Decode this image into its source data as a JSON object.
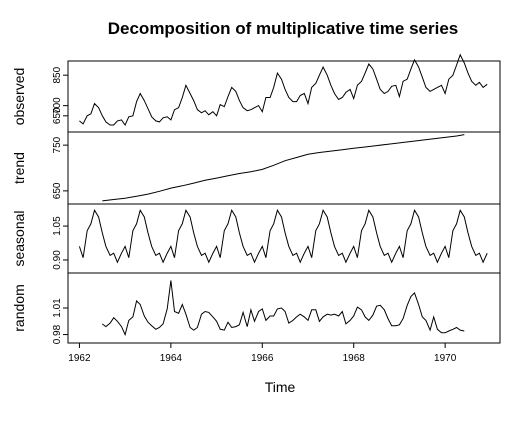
{
  "chart_data": {
    "type": "line",
    "title": "Decomposition of multiplicative time series",
    "xlabel": "Time",
    "xlim": [
      1961.75,
      1971.2
    ],
    "x_ticks": [
      1962,
      1964,
      1966,
      1968,
      1970
    ],
    "x_tick_labels": [
      "1962",
      "1964",
      "1966",
      "1968",
      "1970"
    ],
    "series": [
      {
        "name": "observed",
        "ylim": [
          590,
          900
        ],
        "y_ticks": [
          650,
          700,
          850
        ],
        "y_tick_labels": [
          "650",
          "700",
          "850"
        ],
        "x": [
          1962.0,
          1962.08,
          1962.17,
          1962.25,
          1962.33,
          1962.42,
          1962.5,
          1962.58,
          1962.67,
          1962.75,
          1962.83,
          1962.92,
          1963.0,
          1963.08,
          1963.17,
          1963.25,
          1963.33,
          1963.42,
          1963.5,
          1963.58,
          1963.67,
          1963.75,
          1963.83,
          1963.92,
          1964.0,
          1964.08,
          1964.17,
          1964.25,
          1964.33,
          1964.42,
          1964.5,
          1964.58,
          1964.67,
          1964.75,
          1964.83,
          1964.92,
          1965.0,
          1965.08,
          1965.17,
          1965.25,
          1965.33,
          1965.42,
          1965.5,
          1965.58,
          1965.67,
          1965.75,
          1965.83,
          1965.92,
          1966.0,
          1966.08,
          1966.17,
          1966.25,
          1966.33,
          1966.42,
          1966.5,
          1966.58,
          1966.67,
          1966.75,
          1966.83,
          1966.92,
          1967.0,
          1967.08,
          1967.17,
          1967.25,
          1967.33,
          1967.42,
          1967.5,
          1967.58,
          1967.67,
          1967.75,
          1967.83,
          1967.92,
          1968.0,
          1968.08,
          1968.17,
          1968.25,
          1968.33,
          1968.42,
          1968.5,
          1968.58,
          1968.67,
          1968.75,
          1968.83,
          1968.92,
          1969.0,
          1969.08,
          1969.17,
          1969.25,
          1969.33,
          1969.42,
          1969.5,
          1969.58,
          1969.67,
          1969.75,
          1969.83,
          1969.92,
          1970.0,
          1970.08,
          1970.17,
          1970.25,
          1970.33,
          1970.42,
          1970.5,
          1970.58,
          1970.67,
          1970.75,
          1970.83,
          1970.92
        ],
        "values": [
          625,
          610,
          650,
          660,
          710,
          690,
          650,
          620,
          605,
          605,
          625,
          630,
          605,
          645,
          650,
          720,
          760,
          725,
          685,
          645,
          625,
          620,
          640,
          645,
          630,
          680,
          690,
          740,
          800,
          760,
          725,
          680,
          665,
          675,
          655,
          670,
          650,
          705,
          695,
          745,
          790,
          770,
          725,
          690,
          675,
          680,
          690,
          700,
          670,
          740,
          740,
          790,
          860,
          830,
          780,
          740,
          720,
          720,
          750,
          760,
          710,
          790,
          810,
          850,
          890,
          850,
          800,
          760,
          730,
          740,
          765,
          780,
          735,
          800,
          820,
          860,
          905,
          880,
          830,
          780,
          760,
          770,
          795,
          800,
          745,
          820,
          830,
          880,
          925,
          890,
          840,
          790,
          770,
          780,
          790,
          800,
          760,
          830,
          850,
          900,
          950,
          910,
          860,
          820,
          800,
          815,
          790,
          805
        ]
      },
      {
        "name": "trend",
        "ylim": [
          630,
          770
        ],
        "y_ticks": [
          650,
          750
        ],
        "y_tick_labels": [
          "650",
          "750"
        ],
        "x": [
          1962.5,
          1962.75,
          1963.0,
          1963.25,
          1963.5,
          1963.75,
          1964.0,
          1964.25,
          1964.5,
          1964.75,
          1965.0,
          1965.25,
          1965.5,
          1965.75,
          1966.0,
          1966.25,
          1966.5,
          1966.75,
          1967.0,
          1967.25,
          1967.5,
          1967.75,
          1968.0,
          1968.25,
          1968.5,
          1968.75,
          1969.0,
          1969.25,
          1969.5,
          1969.75,
          1970.0,
          1970.25,
          1970.42
        ],
        "values": [
          628,
          631,
          634,
          638,
          643,
          649,
          656,
          661,
          667,
          673,
          678,
          683,
          688,
          692,
          697,
          706,
          716,
          723,
          730,
          734,
          737,
          740,
          743,
          746,
          749,
          752,
          755,
          758,
          761,
          764,
          767,
          770,
          773
        ]
      },
      {
        "name": "seasonal",
        "ylim": [
          0.86,
          1.13
        ],
        "y_ticks": [
          0.9,
          1.05
        ],
        "y_tick_labels": [
          "0.90",
          "1.05"
        ],
        "x": [
          1962.0,
          1962.08,
          1962.17,
          1962.25,
          1962.33,
          1962.42,
          1962.5,
          1962.58,
          1962.67,
          1962.75,
          1962.83,
          1962.92,
          1963.0,
          1963.08,
          1963.17,
          1963.25,
          1963.33,
          1963.42,
          1963.5,
          1963.58,
          1963.67,
          1963.75,
          1963.83,
          1963.92,
          1964.0,
          1964.08,
          1964.17,
          1964.25,
          1964.33,
          1964.42,
          1964.5,
          1964.58,
          1964.67,
          1964.75,
          1964.83,
          1964.92,
          1965.0,
          1965.08,
          1965.17,
          1965.25,
          1965.33,
          1965.42,
          1965.5,
          1965.58,
          1965.67,
          1965.75,
          1965.83,
          1965.92,
          1966.0,
          1966.08,
          1966.17,
          1966.25,
          1966.33,
          1966.42,
          1966.5,
          1966.58,
          1966.67,
          1966.75,
          1966.83,
          1966.92,
          1967.0,
          1967.08,
          1967.17,
          1967.25,
          1967.33,
          1967.42,
          1967.5,
          1967.58,
          1967.67,
          1967.75,
          1967.83,
          1967.92,
          1968.0,
          1968.08,
          1968.17,
          1968.25,
          1968.33,
          1968.42,
          1968.5,
          1968.58,
          1968.67,
          1968.75,
          1968.83,
          1968.92,
          1969.0,
          1969.08,
          1969.17,
          1969.25,
          1969.33,
          1969.42,
          1969.5,
          1969.58,
          1969.67,
          1969.75,
          1969.83,
          1969.92,
          1970.0,
          1970.08,
          1970.17,
          1970.25,
          1970.33,
          1970.42,
          1970.5,
          1970.58,
          1970.67,
          1970.75,
          1970.83,
          1970.92
        ],
        "values": [
          0.96,
          0.91,
          1.03,
          1.06,
          1.12,
          1.09,
          1.02,
          0.96,
          0.92,
          0.93,
          0.89,
          0.93,
          0.96,
          0.91,
          1.03,
          1.06,
          1.12,
          1.09,
          1.02,
          0.96,
          0.92,
          0.93,
          0.89,
          0.93,
          0.96,
          0.91,
          1.03,
          1.06,
          1.12,
          1.09,
          1.02,
          0.96,
          0.92,
          0.93,
          0.89,
          0.93,
          0.96,
          0.91,
          1.03,
          1.06,
          1.12,
          1.09,
          1.02,
          0.96,
          0.92,
          0.93,
          0.89,
          0.93,
          0.96,
          0.91,
          1.03,
          1.06,
          1.12,
          1.09,
          1.02,
          0.96,
          0.92,
          0.93,
          0.89,
          0.93,
          0.96,
          0.91,
          1.03,
          1.06,
          1.12,
          1.09,
          1.02,
          0.96,
          0.92,
          0.93,
          0.89,
          0.93,
          0.96,
          0.91,
          1.03,
          1.06,
          1.12,
          1.09,
          1.02,
          0.96,
          0.92,
          0.93,
          0.89,
          0.93,
          0.96,
          0.91,
          1.03,
          1.06,
          1.12,
          1.09,
          1.02,
          0.96,
          0.92,
          0.93,
          0.89,
          0.93,
          0.96,
          0.91,
          1.03,
          1.06,
          1.12,
          1.09,
          1.02,
          0.96,
          0.92,
          0.93,
          0.89,
          0.93
        ]
      },
      {
        "name": "random",
        "ylim": [
          0.975,
          1.045
        ],
        "y_ticks": [
          0.98,
          1.01
        ],
        "y_tick_labels": [
          "0.98",
          "1.01"
        ],
        "x": [
          1962.5,
          1962.58,
          1962.67,
          1962.75,
          1962.83,
          1962.92,
          1963.0,
          1963.08,
          1963.17,
          1963.25,
          1963.33,
          1963.42,
          1963.5,
          1963.58,
          1963.67,
          1963.75,
          1963.83,
          1963.92,
          1964.0,
          1964.08,
          1964.17,
          1964.25,
          1964.33,
          1964.42,
          1964.5,
          1964.58,
          1964.67,
          1964.75,
          1964.83,
          1964.92,
          1965.0,
          1965.08,
          1965.17,
          1965.25,
          1965.33,
          1965.42,
          1965.5,
          1965.58,
          1965.67,
          1965.75,
          1965.83,
          1965.92,
          1966.0,
          1966.08,
          1966.17,
          1966.25,
          1966.33,
          1966.42,
          1966.5,
          1966.58,
          1966.67,
          1966.75,
          1966.83,
          1966.92,
          1967.0,
          1967.08,
          1967.17,
          1967.25,
          1967.33,
          1967.42,
          1967.5,
          1967.58,
          1967.67,
          1967.75,
          1967.83,
          1967.92,
          1968.0,
          1968.08,
          1968.17,
          1968.25,
          1968.33,
          1968.42,
          1968.5,
          1968.58,
          1968.67,
          1968.75,
          1968.83,
          1968.92,
          1969.0,
          1969.08,
          1969.17,
          1969.25,
          1969.33,
          1969.42,
          1969.5,
          1969.58,
          1969.67,
          1969.75,
          1969.83,
          1969.92,
          1970.0,
          1970.08,
          1970.17,
          1970.25,
          1970.33,
          1970.42
        ],
        "values": [
          0.992,
          0.989,
          0.993,
          0.999,
          0.995,
          0.989,
          0.98,
          0.996,
          1.0,
          1.018,
          1.014,
          1.001,
          0.994,
          0.99,
          0.986,
          0.988,
          0.992,
          1.009,
          1.041,
          1.006,
          1.004,
          1.014,
          1.003,
          0.988,
          0.985,
          0.988,
          1.003,
          1.006,
          1.005,
          1.0,
          0.995,
          0.986,
          0.985,
          0.994,
          0.988,
          0.989,
          0.991,
          1.005,
          0.989,
          1.008,
          0.995,
          1.006,
          1.009,
          0.996,
          1.001,
          1.001,
          1.009,
          1.01,
          1.006,
          0.993,
          0.996,
          1.0,
          1.003,
          1.0,
          0.996,
          1.008,
          1.008,
          0.995,
          1.0,
          1.003,
          1.002,
          1.003,
          1.001,
          1.006,
          0.992,
          0.996,
          1.001,
          1.011,
          1.008,
          1.0,
          0.996,
          1.002,
          1.012,
          1.013,
          1.008,
          0.998,
          0.99,
          0.99,
          0.991,
          0.998,
          1.013,
          1.023,
          1.027,
          1.014,
          1.0,
          0.996,
          0.985,
          1.0,
          0.986,
          0.982,
          0.982,
          0.984,
          0.986,
          0.988,
          0.985,
          0.984
        ]
      }
    ]
  }
}
